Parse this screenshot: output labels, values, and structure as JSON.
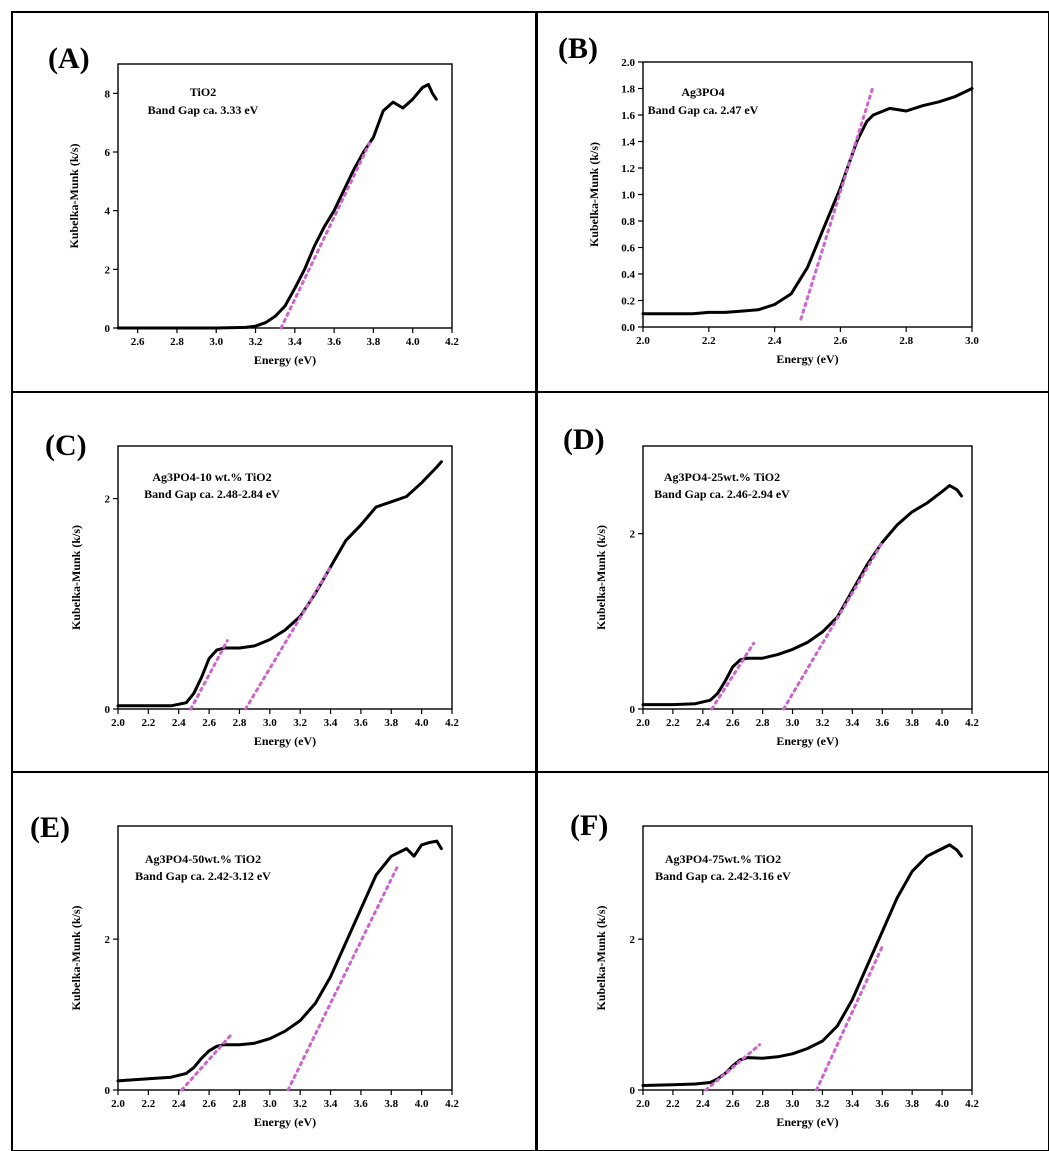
{
  "colors": {
    "curve": "#000000",
    "fit_line": "#cc66cc",
    "background": "#ffffff"
  },
  "chart_data": [
    {
      "type": "line",
      "panel": "(A)",
      "annotation": [
        "TiO2",
        "Band Gap ca. 3.33 eV"
      ],
      "xlabel": "Energy (eV)",
      "ylabel": "Kubelka-Munk (k/s)",
      "xlim": [
        2.5,
        4.2
      ],
      "ylim": [
        0,
        9
      ],
      "xticks": [
        2.6,
        2.8,
        3.0,
        3.2,
        3.4,
        3.6,
        3.8,
        4.0,
        4.2
      ],
      "yticks": [
        0,
        2,
        4,
        6,
        8
      ],
      "xtick_labels": [
        "2.6",
        "2.8",
        "3.0",
        "3.2",
        "3.4",
        "3.6",
        "3.8",
        "4.0",
        "4.2"
      ],
      "ytick_labels": [
        "0",
        "2",
        "4",
        "6",
        "8"
      ],
      "series": [
        {
          "x": [
            2.5,
            3.0,
            3.15,
            3.2,
            3.25,
            3.3,
            3.35,
            3.4,
            3.45,
            3.5,
            3.55,
            3.6,
            3.65,
            3.7,
            3.75,
            3.8,
            3.85,
            3.9,
            3.95,
            4.0,
            4.05,
            4.08,
            4.1,
            4.12
          ],
          "y": [
            0,
            0,
            0.02,
            0.06,
            0.18,
            0.4,
            0.75,
            1.35,
            2.0,
            2.8,
            3.45,
            4.0,
            4.7,
            5.4,
            6.0,
            6.5,
            7.4,
            7.7,
            7.5,
            7.8,
            8.2,
            8.3,
            8.0,
            7.8
          ]
        }
      ],
      "fits": [
        {
          "x": [
            3.33,
            3.78
          ],
          "y": [
            0,
            6.3
          ]
        }
      ]
    },
    {
      "type": "line",
      "panel": "(B)",
      "annotation": [
        "Ag3PO4",
        "Band Gap ca. 2.47 eV"
      ],
      "xlabel": "Energy (eV)",
      "ylabel": "Kubelka-Munk (k/s)",
      "xlim": [
        2.0,
        3.0
      ],
      "ylim": [
        0,
        2.0
      ],
      "xticks": [
        2.0,
        2.2,
        2.4,
        2.6,
        2.8,
        3.0
      ],
      "yticks": [
        0.0,
        0.2,
        0.4,
        0.6,
        0.8,
        1.0,
        1.2,
        1.4,
        1.6,
        1.8,
        2.0
      ],
      "xtick_labels": [
        "2.0",
        "2.2",
        "2.4",
        "2.6",
        "2.8",
        "3.0"
      ],
      "ytick_labels": [
        "0.0",
        "0.2",
        "0.4",
        "0.6",
        "0.8",
        "1.0",
        "1.2",
        "1.4",
        "1.6",
        "1.8",
        "2.0"
      ],
      "series": [
        {
          "x": [
            2.0,
            2.05,
            2.1,
            2.15,
            2.2,
            2.25,
            2.3,
            2.35,
            2.4,
            2.45,
            2.5,
            2.55,
            2.6,
            2.65,
            2.68,
            2.7,
            2.75,
            2.8,
            2.85,
            2.9,
            2.95,
            3.0
          ],
          "y": [
            0.1,
            0.1,
            0.1,
            0.1,
            0.11,
            0.11,
            0.12,
            0.13,
            0.17,
            0.25,
            0.45,
            0.75,
            1.05,
            1.4,
            1.55,
            1.6,
            1.65,
            1.63,
            1.67,
            1.7,
            1.74,
            1.8
          ]
        }
      ],
      "fits": [
        {
          "x": [
            2.48,
            2.7
          ],
          "y": [
            0.06,
            1.82
          ]
        }
      ]
    },
    {
      "type": "line",
      "panel": "(C)",
      "annotation": [
        "Ag3PO4-10 wt.% TiO2",
        "Band Gap ca. 2.48-2.84 eV"
      ],
      "xlabel": "Energy (eV)",
      "ylabel": "Kubelka-Munk (k/s)",
      "xlim": [
        2.0,
        4.2
      ],
      "ylim": [
        0,
        2.5
      ],
      "xticks": [
        2.0,
        2.2,
        2.4,
        2.6,
        2.8,
        3.0,
        3.2,
        3.4,
        3.6,
        3.8,
        4.0,
        4.2
      ],
      "yticks": [
        0,
        2
      ],
      "xtick_labels": [
        "2.0",
        "2.2",
        "2.4",
        "2.6",
        "2.8",
        "3.0",
        "3.2",
        "3.4",
        "3.6",
        "3.8",
        "4.0",
        "4.2"
      ],
      "ytick_labels": [
        "0",
        "2"
      ],
      "series": [
        {
          "x": [
            2.0,
            2.2,
            2.35,
            2.45,
            2.5,
            2.55,
            2.6,
            2.65,
            2.7,
            2.8,
            2.9,
            3.0,
            3.1,
            3.2,
            3.3,
            3.4,
            3.5,
            3.6,
            3.7,
            3.8,
            3.9,
            4.0,
            4.1,
            4.13
          ],
          "y": [
            0.03,
            0.03,
            0.03,
            0.06,
            0.15,
            0.3,
            0.48,
            0.56,
            0.58,
            0.58,
            0.6,
            0.66,
            0.75,
            0.88,
            1.1,
            1.35,
            1.6,
            1.75,
            1.92,
            1.97,
            2.02,
            2.15,
            2.3,
            2.35
          ]
        }
      ],
      "fits": [
        {
          "x": [
            2.48,
            2.72
          ],
          "y": [
            0.0,
            0.65
          ]
        },
        {
          "x": [
            2.84,
            3.4
          ],
          "y": [
            0.0,
            1.35
          ]
        }
      ]
    },
    {
      "type": "line",
      "panel": "(D)",
      "annotation": [
        "Ag3PO4-25wt.% TiO2",
        "Band Gap ca. 2.46-2.94 eV"
      ],
      "xlabel": "Energy (eV)",
      "ylabel": "Kubelka-Munk (k/s)",
      "xlim": [
        2.0,
        4.2
      ],
      "ylim": [
        0,
        3.0
      ],
      "xticks": [
        2.0,
        2.2,
        2.4,
        2.6,
        2.8,
        3.0,
        3.2,
        3.4,
        3.6,
        3.8,
        4.0,
        4.2
      ],
      "yticks": [
        0,
        2
      ],
      "xtick_labels": [
        "2.0",
        "2.2",
        "2.4",
        "2.6",
        "2.8",
        "3.0",
        "3.2",
        "3.4",
        "3.6",
        "3.8",
        "4.0",
        "4.2"
      ],
      "ytick_labels": [
        "0",
        "2"
      ],
      "series": [
        {
          "x": [
            2.0,
            2.2,
            2.35,
            2.45,
            2.5,
            2.55,
            2.6,
            2.65,
            2.7,
            2.8,
            2.9,
            3.0,
            3.1,
            3.2,
            3.3,
            3.4,
            3.5,
            3.6,
            3.7,
            3.8,
            3.9,
            4.0,
            4.05,
            4.1,
            4.13
          ],
          "y": [
            0.05,
            0.05,
            0.06,
            0.1,
            0.18,
            0.32,
            0.48,
            0.56,
            0.58,
            0.58,
            0.62,
            0.68,
            0.76,
            0.88,
            1.05,
            1.35,
            1.65,
            1.9,
            2.1,
            2.25,
            2.35,
            2.48,
            2.55,
            2.5,
            2.43
          ]
        }
      ],
      "fits": [
        {
          "x": [
            2.46,
            2.74
          ],
          "y": [
            0.0,
            0.75
          ]
        },
        {
          "x": [
            2.94,
            3.6
          ],
          "y": [
            0.0,
            1.9
          ]
        }
      ]
    },
    {
      "type": "line",
      "panel": "(E)",
      "annotation": [
        "Ag3PO4-50wt.% TiO2",
        "Band Gap ca. 2.42-3.12 eV"
      ],
      "xlabel": "Energy (eV)",
      "ylabel": "Kubelka-Munk (k/s)",
      "xlim": [
        2.0,
        4.2
      ],
      "ylim": [
        0,
        3.5
      ],
      "xticks": [
        2.0,
        2.2,
        2.4,
        2.6,
        2.8,
        3.0,
        3.2,
        3.4,
        3.6,
        3.8,
        4.0,
        4.2
      ],
      "yticks": [
        0,
        2
      ],
      "xtick_labels": [
        "2.0",
        "2.2",
        "2.4",
        "2.6",
        "2.8",
        "3.0",
        "3.2",
        "3.4",
        "3.6",
        "3.8",
        "4.0",
        "4.2"
      ],
      "ytick_labels": [
        "0",
        "2"
      ],
      "series": [
        {
          "x": [
            2.0,
            2.2,
            2.35,
            2.45,
            2.5,
            2.55,
            2.6,
            2.65,
            2.7,
            2.8,
            2.9,
            3.0,
            3.1,
            3.2,
            3.3,
            3.4,
            3.5,
            3.6,
            3.7,
            3.8,
            3.9,
            3.95,
            4.0,
            4.05,
            4.1,
            4.13
          ],
          "y": [
            0.12,
            0.15,
            0.17,
            0.22,
            0.3,
            0.42,
            0.52,
            0.58,
            0.6,
            0.6,
            0.62,
            0.68,
            0.78,
            0.92,
            1.15,
            1.5,
            1.95,
            2.4,
            2.85,
            3.1,
            3.2,
            3.1,
            3.25,
            3.28,
            3.3,
            3.2
          ]
        }
      ],
      "fits": [
        {
          "x": [
            2.42,
            2.74
          ],
          "y": [
            0.0,
            0.72
          ]
        },
        {
          "x": [
            3.12,
            3.85
          ],
          "y": [
            0.0,
            3.0
          ]
        }
      ]
    },
    {
      "type": "line",
      "panel": "(F)",
      "annotation": [
        "Ag3PO4-75wt.% TiO2",
        "Band Gap ca. 2.42-3.16 eV"
      ],
      "xlabel": "Energy (eV)",
      "ylabel": "Kubelka-Munk (k/s)",
      "xlim": [
        2.0,
        4.2
      ],
      "ylim": [
        0,
        3.5
      ],
      "xticks": [
        2.0,
        2.2,
        2.4,
        2.6,
        2.8,
        3.0,
        3.2,
        3.4,
        3.6,
        3.8,
        4.0,
        4.2
      ],
      "yticks": [
        0,
        2
      ],
      "xtick_labels": [
        "2.0",
        "2.2",
        "2.4",
        "2.6",
        "2.8",
        "3.0",
        "3.2",
        "3.4",
        "3.6",
        "3.8",
        "4.0",
        "4.2"
      ],
      "ytick_labels": [
        "0",
        "2"
      ],
      "series": [
        {
          "x": [
            2.0,
            2.2,
            2.35,
            2.45,
            2.5,
            2.55,
            2.6,
            2.65,
            2.7,
            2.8,
            2.9,
            3.0,
            3.1,
            3.2,
            3.3,
            3.4,
            3.5,
            3.6,
            3.7,
            3.8,
            3.9,
            3.95,
            4.0,
            4.05,
            4.1,
            4.13
          ],
          "y": [
            0.06,
            0.07,
            0.08,
            0.1,
            0.15,
            0.22,
            0.32,
            0.4,
            0.43,
            0.42,
            0.44,
            0.48,
            0.55,
            0.65,
            0.85,
            1.2,
            1.65,
            2.1,
            2.55,
            2.9,
            3.1,
            3.15,
            3.2,
            3.25,
            3.18,
            3.1
          ]
        }
      ],
      "fits": [
        {
          "x": [
            2.42,
            2.78
          ],
          "y": [
            0.0,
            0.6
          ]
        },
        {
          "x": [
            3.16,
            3.6
          ],
          "y": [
            0.0,
            1.9
          ]
        }
      ]
    }
  ]
}
